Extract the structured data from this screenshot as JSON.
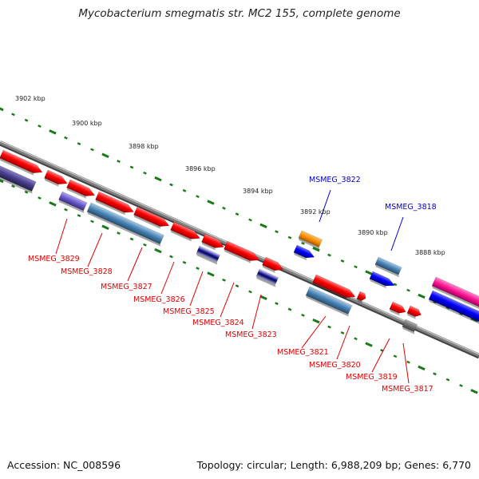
{
  "title": "Mycobacterium smegmatis str. MC2 155, complete genome",
  "footer": {
    "accession": "Accession: NC_008596",
    "topology": "Topology: circular; Length: 6,988,209 bp; Genes: 6,770"
  },
  "kbp_labels": [
    "3902 kbp",
    "3900 kbp",
    "3898 kbp",
    "3896 kbp",
    "3894 kbp",
    "3892 kbp",
    "3890 kbp",
    "3888 kbp"
  ],
  "gene_labels": [
    {
      "name": "MSMEG_3829",
      "color": "#e00000"
    },
    {
      "name": "MSMEG_3828",
      "color": "#e00000"
    },
    {
      "name": "MSMEG_3827",
      "color": "#e00000"
    },
    {
      "name": "MSMEG_3826",
      "color": "#e00000"
    },
    {
      "name": "MSMEG_3825",
      "color": "#e00000"
    },
    {
      "name": "MSMEG_3824",
      "color": "#e00000"
    },
    {
      "name": "MSMEG_3823",
      "color": "#e00000"
    },
    {
      "name": "MSMEG_3822",
      "color": "#0000cc"
    },
    {
      "name": "MSMEG_3821",
      "color": "#e00000"
    },
    {
      "name": "MSMEG_3820",
      "color": "#e00000"
    },
    {
      "name": "MSMEG_3819",
      "color": "#e00000"
    },
    {
      "name": "MSMEG_3818",
      "color": "#0000cc"
    },
    {
      "name": "MSMEG_3817",
      "color": "#e00000"
    }
  ],
  "colors": {
    "backbone": "#808080",
    "tick": "#1a7a1a",
    "cds_red": "#ff0000",
    "cds_blue": "#0000ff",
    "cds_orange": "#ff8c00",
    "steel_blue": "#4682b4",
    "slate_purple": "#6a5acd",
    "navy": "#000080",
    "dark_slate": "#483d8b",
    "magenta": "#ff1493",
    "gray": "#707070"
  }
}
